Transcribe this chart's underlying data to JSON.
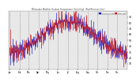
{
  "title": "Milwaukee Weather Outdoor Temperature  Daily High  (Past/Previous Year)",
  "n_days": 365,
  "temp_min_jan": 28,
  "temp_max_jul": 83,
  "noise_scale": 9,
  "past_color": "#cc1111",
  "previous_color": "#1111cc",
  "background_color": "#ffffff",
  "plot_bg_color": "#e8e8e8",
  "grid_color": "#999999",
  "ylim": [
    0,
    100
  ],
  "yticks": [
    10,
    20,
    30,
    40,
    50,
    60,
    70,
    80,
    90
  ],
  "ytick_labels": [
    "10",
    "20",
    "30",
    "40",
    "50",
    "60",
    "70",
    "80",
    "90"
  ],
  "month_positions": [
    0,
    31,
    59,
    90,
    120,
    151,
    181,
    212,
    243,
    273,
    304,
    334
  ],
  "month_labels": [
    "Jan",
    "Feb",
    "Mar",
    "Apr",
    "May",
    "Jun",
    "Jul",
    "Aug",
    "Sep",
    "Oct",
    "Nov",
    "Dec"
  ],
  "legend_blue_label": "Previous Year",
  "legend_red_label": "Past Year",
  "seed": 137,
  "bar_width": 0.4
}
